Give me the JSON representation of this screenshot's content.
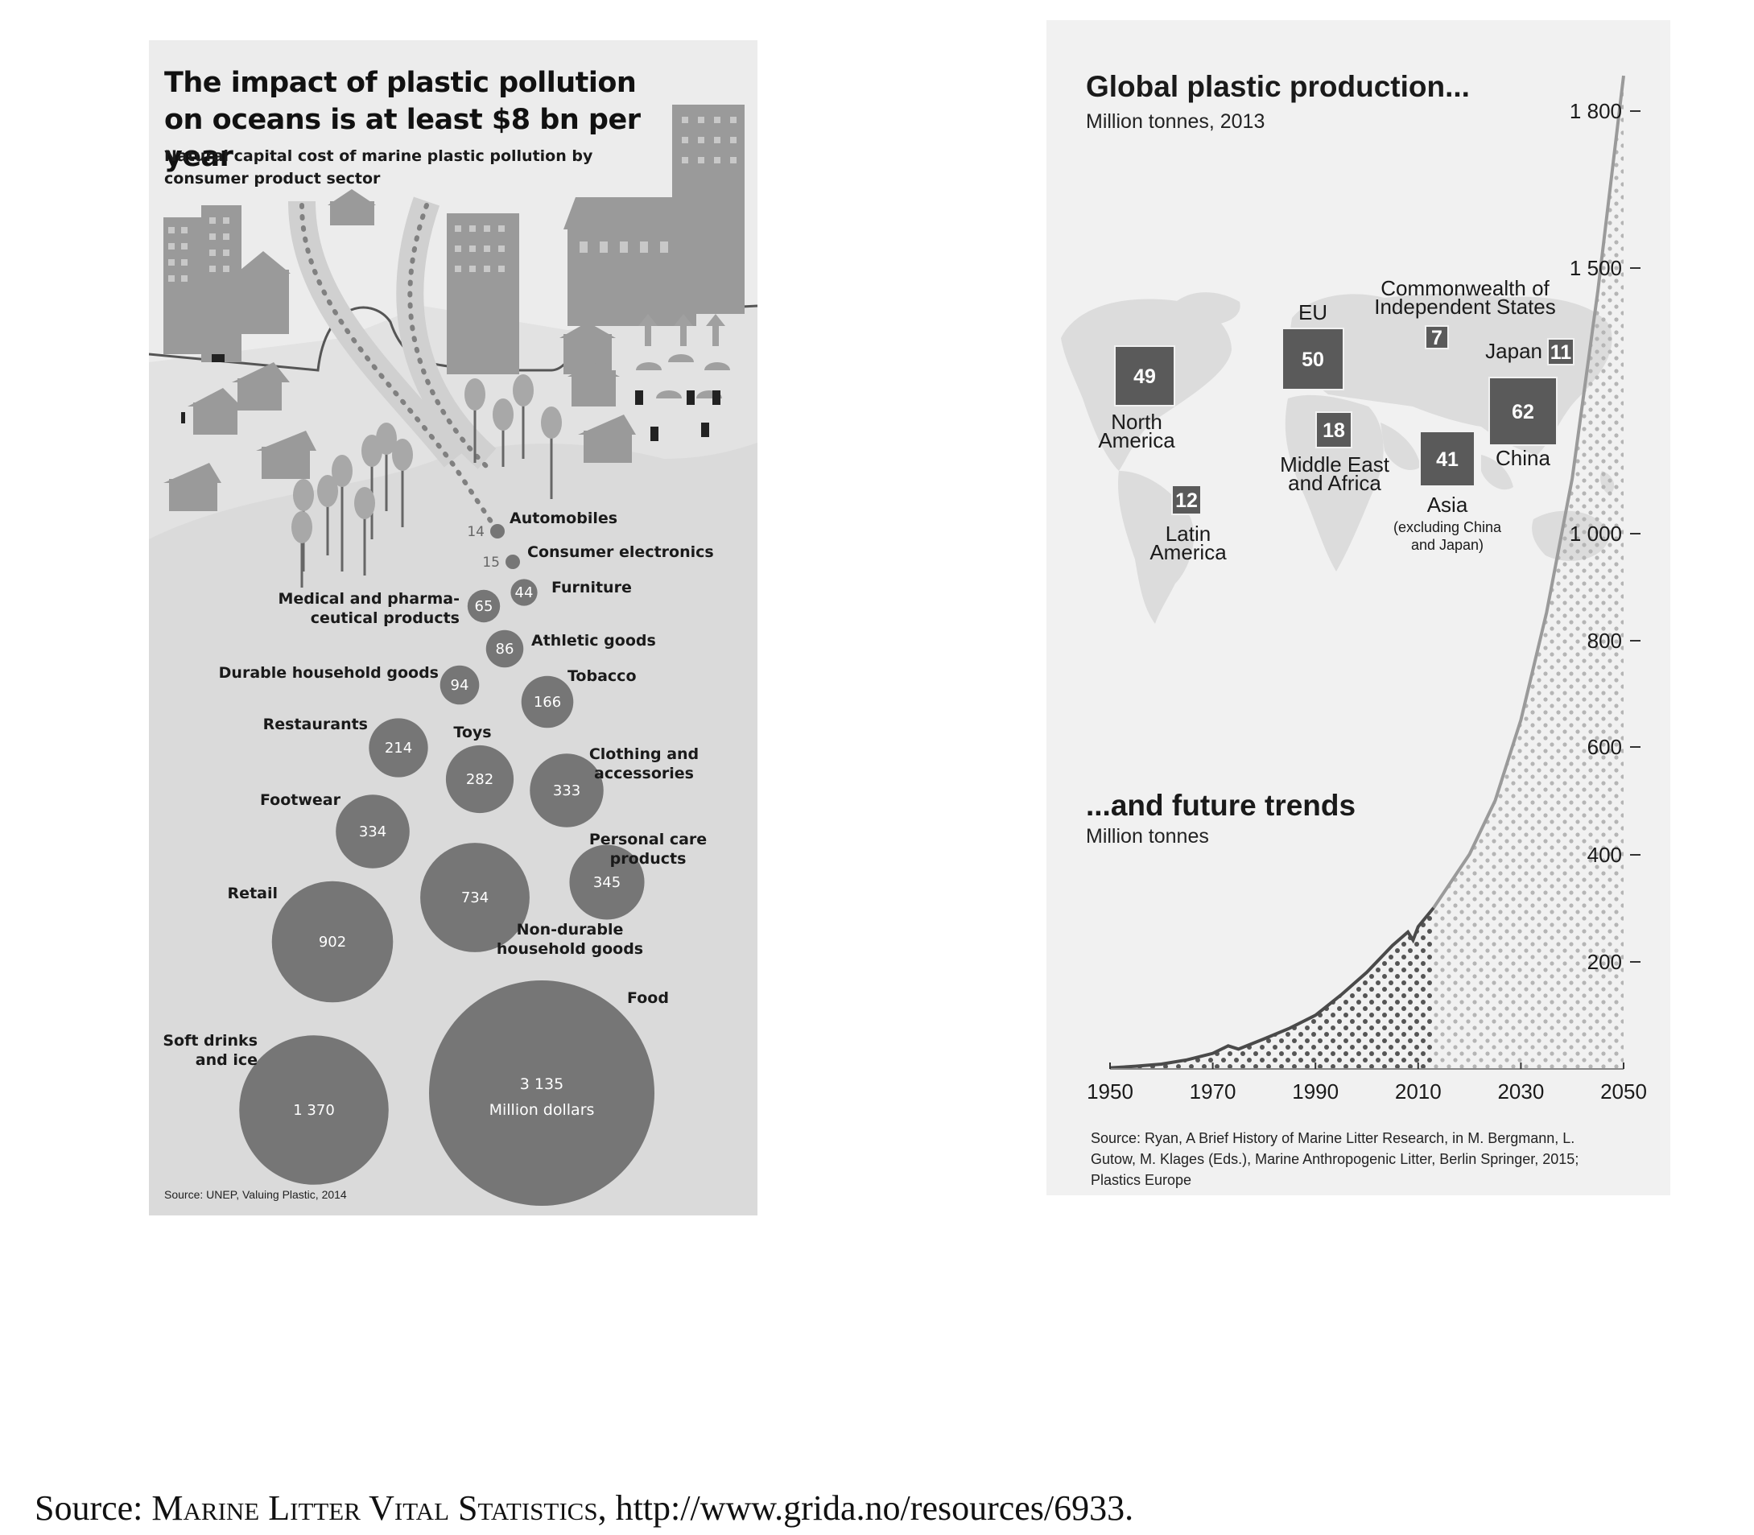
{
  "chart_data": [
    {
      "type": "bubble",
      "title": "The impact of plastic pollution on oceans is at least $8 bn per year",
      "subtitle": "Natural capital cost of marine plastic pollution by consumer product sector",
      "unit": "Million dollars",
      "source": "Source: UNEP, Valuing Plastic, 2014",
      "series": [
        {
          "label": "Automobiles",
          "value": 14,
          "value_text": "14"
        },
        {
          "label": "Consumer electronics",
          "value": 15,
          "value_text": "15"
        },
        {
          "label": "Furniture",
          "value": 44,
          "value_text": "44"
        },
        {
          "label": "Medical and pharma-ceutical products",
          "value": 65,
          "value_text": "65"
        },
        {
          "label": "Athletic goods",
          "value": 86,
          "value_text": "86"
        },
        {
          "label": "Durable household goods",
          "value": 94,
          "value_text": "94"
        },
        {
          "label": "Tobacco",
          "value": 166,
          "value_text": "166"
        },
        {
          "label": "Restaurants",
          "value": 214,
          "value_text": "214"
        },
        {
          "label": "Toys",
          "value": 282,
          "value_text": "282"
        },
        {
          "label": "Clothing and accessories",
          "value": 333,
          "value_text": "333"
        },
        {
          "label": "Footwear",
          "value": 334,
          "value_text": "334"
        },
        {
          "label": "Personal care products",
          "value": 345,
          "value_text": "345"
        },
        {
          "label": "Non-durable household goods",
          "value": 734,
          "value_text": "734"
        },
        {
          "label": "Retail",
          "value": 902,
          "value_text": "902"
        },
        {
          "label": "Soft drinks and ice",
          "value": 1370,
          "value_text": "1 370"
        },
        {
          "label": "Food",
          "value": 3135,
          "value_text": "3 135"
        }
      ]
    },
    {
      "type": "map",
      "title": "Global plastic production...",
      "subtitle": "Million tonnes, 2013",
      "regions": [
        {
          "name": "North America",
          "value": 49
        },
        {
          "name": "Latin America",
          "value": 12
        },
        {
          "name": "EU",
          "value": 50
        },
        {
          "name": "Middle East and Africa",
          "value": 18
        },
        {
          "name": "Commonwealth of Independent States",
          "value": 7
        },
        {
          "name": "Japan",
          "value": 11
        },
        {
          "name": "China",
          "value": 62
        },
        {
          "name": "Asia",
          "note": "(excluding China and Japan)",
          "value": 41
        }
      ]
    },
    {
      "type": "area",
      "title": "...and future trends",
      "subtitle": "Million tonnes",
      "x_ticks": [
        1950,
        1970,
        1990,
        2010,
        2030,
        2050
      ],
      "y_ticks": [
        200,
        400,
        600,
        800,
        1000,
        1500,
        1800
      ],
      "y_tick_labels": [
        "200",
        "400",
        "600",
        "800",
        "1 000",
        "1 500",
        "1 800"
      ],
      "xlim": [
        1950,
        2050
      ],
      "historical": {
        "x": [
          1950,
          1955,
          1960,
          1965,
          1970,
          1973,
          1975,
          1980,
          1985,
          1990,
          1995,
          2000,
          2005,
          2008,
          2009,
          2010,
          2013
        ],
        "y": [
          2,
          5,
          9,
          17,
          29,
          43,
          37,
          56,
          76,
          100,
          138,
          180,
          230,
          255,
          240,
          265,
          300
        ]
      },
      "projection": {
        "x": [
          2013,
          2020,
          2025,
          2030,
          2035,
          2040,
          2045,
          2050
        ],
        "y": [
          300,
          400,
          500,
          650,
          850,
          1100,
          1450,
          1850
        ]
      },
      "source": "Source: Ryan, A Brief History of Marine Litter Research, in M. Bergmann, L. Gutow, M. Klages (Eds.), Marine Anthropogenic Litter, Berlin Springer, 2015; Plastics Europe"
    }
  ],
  "caption": {
    "prefix": "Source: ",
    "smallcaps": "Marine Litter Vital Statistics",
    "suffix": ", http://www.grida.no/resources/6933."
  }
}
